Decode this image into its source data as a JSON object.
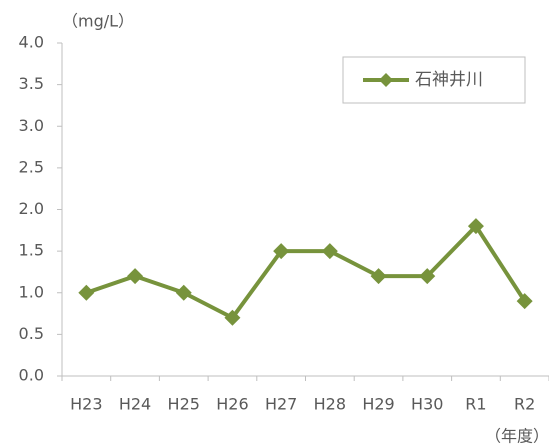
{
  "chart_data": {
    "type": "line",
    "y_unit": "（mg/L）",
    "x_unit": "（年度）",
    "categories": [
      "H23",
      "H24",
      "H25",
      "H26",
      "H27",
      "H28",
      "H29",
      "H30",
      "R1",
      "R2"
    ],
    "series": [
      {
        "name": "石神井川",
        "color": "#77933c",
        "values": [
          1.0,
          1.2,
          1.0,
          0.7,
          1.5,
          1.5,
          1.2,
          1.2,
          1.8,
          0.9
        ]
      }
    ],
    "ylim": [
      0,
      4
    ],
    "yticks": [
      {
        "value": 0,
        "label": "0.0"
      },
      {
        "value": 0.5,
        "label": "0.5"
      },
      {
        "value": 1,
        "label": "1.0"
      },
      {
        "value": 1.5,
        "label": "1.5"
      },
      {
        "value": 2,
        "label": "2.0"
      },
      {
        "value": 2.5,
        "label": "2.5"
      },
      {
        "value": 3,
        "label": "3.0"
      },
      {
        "value": 3.5,
        "label": "3.5"
      },
      {
        "value": 4,
        "label": "4.0"
      }
    ],
    "grid": false,
    "legend": "top-right"
  }
}
